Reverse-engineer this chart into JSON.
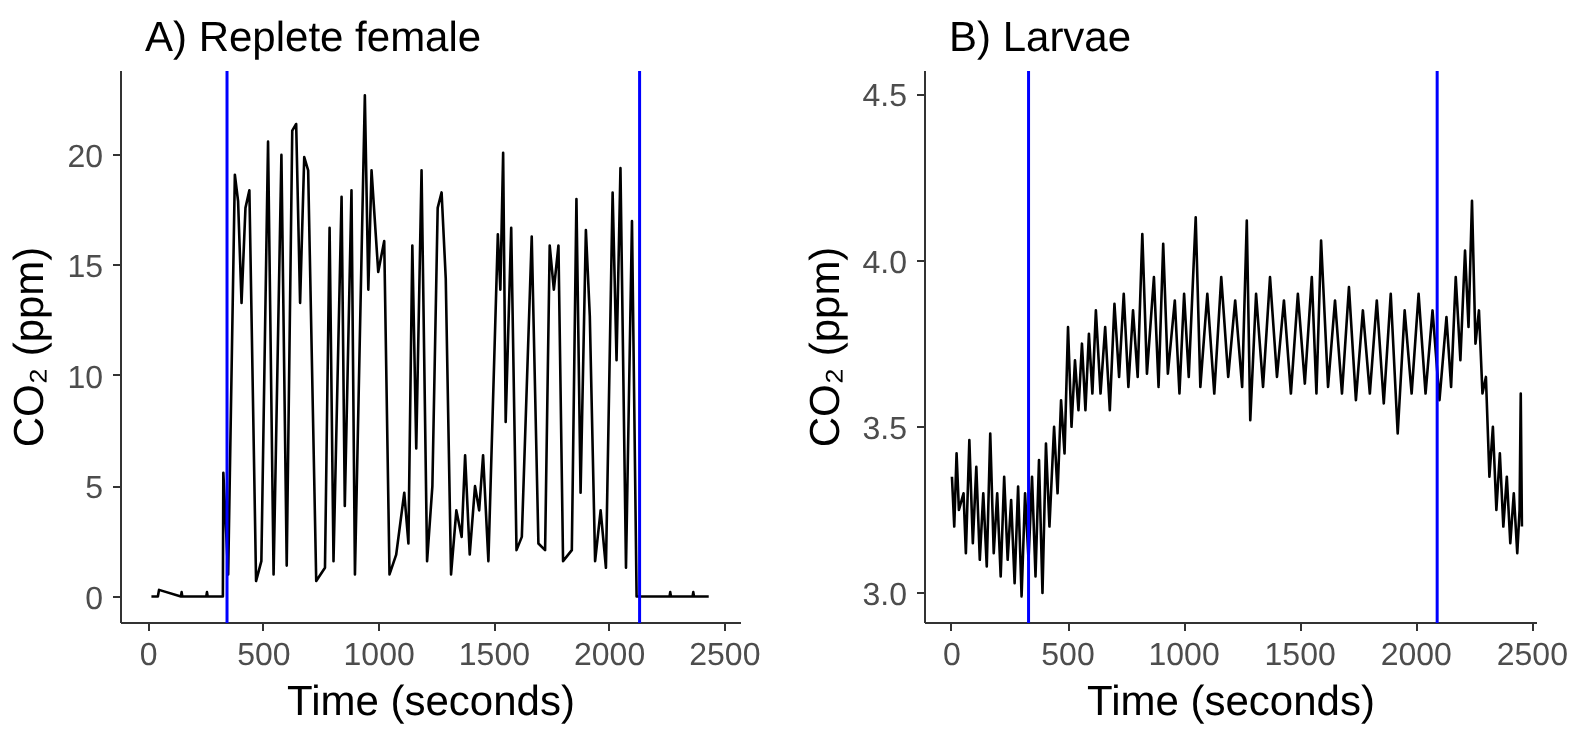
{
  "chart_data": [
    {
      "type": "line",
      "title": "A) Replete female",
      "xlabel": "Time (seconds)",
      "ylabel": "CO₂ (ppm)",
      "xlim": [
        -120,
        2570
      ],
      "ylim": [
        -1.2,
        23.8
      ],
      "xticks": [
        0,
        500,
        1000,
        1500,
        2000,
        2500
      ],
      "yticks": [
        0,
        5,
        10,
        15,
        20
      ],
      "grid": false,
      "marker": "none",
      "line_style": "solid",
      "ref_lines": [
        {
          "axis": "x",
          "value": 340,
          "color": "#0000ff"
        },
        {
          "axis": "x",
          "value": 2130,
          "color": "#0000ff"
        }
      ],
      "series": [
        {
          "color": "#000000",
          "x": [
            12,
            40,
            45,
            140,
            143,
            146,
            250,
            253,
            256,
            322,
            324,
            345,
            374,
            388,
            403,
            420,
            437,
            466,
            489,
            518,
            542,
            576,
            599,
            623,
            640,
            657,
            675,
            692,
            727,
            765,
            785,
            802,
            837,
            851,
            880,
            895,
            938,
            953,
            967,
            996,
            1022,
            1045,
            1074,
            1109,
            1127,
            1144,
            1161,
            1184,
            1208,
            1231,
            1254,
            1271,
            1289,
            1312,
            1335,
            1358,
            1373,
            1393,
            1416,
            1434,
            1451,
            1474,
            1515,
            1526,
            1538,
            1549,
            1573,
            1596,
            1619,
            1662,
            1691,
            1720,
            1740,
            1758,
            1778,
            1798,
            1836,
            1856,
            1874,
            1897,
            1914,
            1937,
            1961,
            1984,
            2013,
            2030,
            2047,
            2071,
            2097,
            2117,
            2140,
            2260,
            2263,
            2266,
            2360,
            2363,
            2366,
            2430
          ],
          "values": [
            0,
            0,
            0.3,
            0,
            0.2,
            0,
            0,
            0.2,
            0,
            0,
            5.6,
            1.0,
            19.1,
            17.9,
            13.3,
            17.6,
            18.4,
            0.7,
            1.6,
            20.6,
            1.0,
            20.0,
            1.4,
            21.1,
            21.4,
            13.3,
            19.9,
            19.3,
            0.7,
            1.3,
            16.7,
            1.6,
            18.1,
            4.1,
            18.4,
            1.0,
            22.7,
            13.9,
            19.3,
            14.7,
            16.1,
            1.0,
            1.9,
            4.7,
            2.4,
            15.9,
            6.7,
            19.3,
            1.6,
            5.0,
            17.6,
            18.3,
            14.4,
            1.0,
            3.9,
            2.7,
            6.4,
            1.9,
            5.0,
            3.9,
            6.4,
            1.6,
            16.4,
            13.9,
            20.1,
            7.9,
            16.7,
            2.1,
            2.7,
            16.3,
            2.4,
            2.1,
            15.9,
            13.9,
            15.9,
            1.6,
            2.1,
            18.0,
            4.7,
            16.6,
            12.7,
            1.6,
            3.9,
            1.3,
            18.3,
            10.7,
            19.4,
            1.3,
            17.0,
            0,
            0,
            0,
            0.2,
            0,
            0,
            0.2,
            0,
            0
          ]
        }
      ]
    },
    {
      "type": "line",
      "title": "B) Larvae",
      "xlabel": "Time (seconds)",
      "ylabel": "CO₂ (ppm)",
      "xlim": [
        -116,
        2520
      ],
      "ylim": [
        2.91,
        4.57
      ],
      "xticks": [
        0,
        500,
        1000,
        1500,
        2000,
        2500
      ],
      "yticks": [
        {
          "value": 3.0,
          "label": "3.0"
        },
        3.5,
        {
          "value": 4.0,
          "label": "4.0"
        },
        4.5
      ],
      "grid": false,
      "marker": "none",
      "line_style": "solid",
      "ref_lines": [
        {
          "axis": "x",
          "value": 330,
          "color": "#0000ff"
        },
        {
          "axis": "x",
          "value": 2090,
          "color": "#0000ff"
        }
      ],
      "series": [
        {
          "color": "#000000",
          "x": [
            0,
            10,
            20,
            30,
            50,
            60,
            75,
            90,
            105,
            120,
            135,
            150,
            165,
            180,
            195,
            210,
            225,
            240,
            255,
            270,
            285,
            300,
            315,
            330,
            345,
            360,
            375,
            390,
            405,
            420,
            440,
            455,
            470,
            485,
            500,
            515,
            530,
            545,
            560,
            575,
            590,
            605,
            620,
            640,
            660,
            680,
            700,
            720,
            740,
            760,
            780,
            800,
            820,
            840,
            870,
            890,
            910,
            930,
            960,
            980,
            1000,
            1020,
            1050,
            1070,
            1100,
            1130,
            1160,
            1190,
            1220,
            1250,
            1270,
            1285,
            1310,
            1340,
            1370,
            1400,
            1430,
            1460,
            1490,
            1520,
            1550,
            1570,
            1590,
            1620,
            1650,
            1680,
            1710,
            1740,
            1770,
            1800,
            1830,
            1860,
            1890,
            1920,
            1950,
            1980,
            2010,
            2040,
            2070,
            2100,
            2130,
            2150,
            2170,
            2190,
            2210,
            2225,
            2240,
            2255,
            2270,
            2285,
            2300,
            2315,
            2330,
            2345,
            2360,
            2375,
            2390,
            2405,
            2420,
            2435,
            2445,
            2450,
            2455
          ],
          "values": [
            3.35,
            3.2,
            3.42,
            3.25,
            3.3,
            3.12,
            3.46,
            3.15,
            3.38,
            3.1,
            3.3,
            3.08,
            3.48,
            3.12,
            3.3,
            3.05,
            3.35,
            3.1,
            3.28,
            3.03,
            3.32,
            2.99,
            3.3,
            3.1,
            3.35,
            3.05,
            3.4,
            3.0,
            3.45,
            3.2,
            3.5,
            3.3,
            3.58,
            3.42,
            3.8,
            3.5,
            3.7,
            3.55,
            3.75,
            3.55,
            3.78,
            3.6,
            3.85,
            3.6,
            3.8,
            3.55,
            3.87,
            3.65,
            3.9,
            3.62,
            3.85,
            3.65,
            4.08,
            3.66,
            3.95,
            3.62,
            4.05,
            3.66,
            3.88,
            3.6,
            3.9,
            3.65,
            4.13,
            3.62,
            3.9,
            3.6,
            3.95,
            3.65,
            3.88,
            3.62,
            4.12,
            3.52,
            3.9,
            3.62,
            3.95,
            3.65,
            3.88,
            3.6,
            3.9,
            3.63,
            3.95,
            3.6,
            4.06,
            3.62,
            3.88,
            3.6,
            3.92,
            3.58,
            3.85,
            3.6,
            3.88,
            3.57,
            3.9,
            3.48,
            3.85,
            3.6,
            3.9,
            3.6,
            3.85,
            3.58,
            3.83,
            3.62,
            3.95,
            3.7,
            4.03,
            3.8,
            4.18,
            3.75,
            3.85,
            3.6,
            3.65,
            3.35,
            3.5,
            3.25,
            3.42,
            3.2,
            3.35,
            3.15,
            3.3,
            3.12,
            3.25,
            3.6,
            3.2
          ]
        }
      ]
    }
  ]
}
